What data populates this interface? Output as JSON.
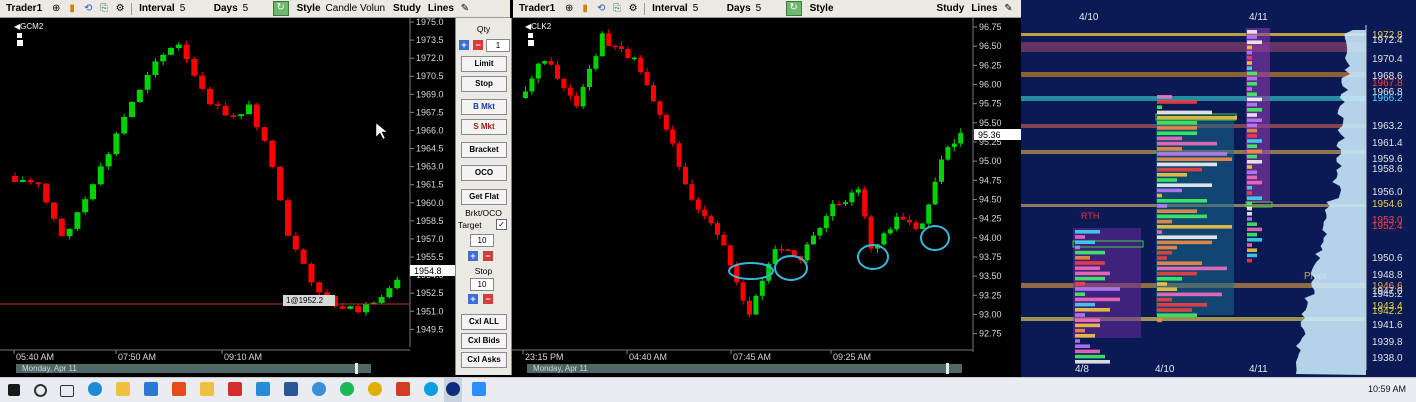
{
  "toolbar_left": {
    "app": "Trader1",
    "interval_label": "Interval",
    "interval_value": "5",
    "days_label": "Days",
    "days_value": "5",
    "style_label": "Style",
    "style_value": "Candle Volun",
    "study_label": "Study",
    "lines_label": "Lines"
  },
  "toolbar_mid": {
    "app": "Trader1",
    "interval_label": "Interval",
    "interval_value": "5",
    "days_label": "Days",
    "days_value": "5",
    "style_label": "Style",
    "study_label": "Study",
    "lines_label": "Lines"
  },
  "chart1": {
    "symbol": "GCM2",
    "price_labels": [
      "1975.0",
      "1973.5",
      "1972.0",
      "1970.5",
      "1969.0",
      "1967.5",
      "1966.0",
      "1964.5",
      "1963.0",
      "1961.5",
      "1960.0",
      "1958.5",
      "1957.0",
      "1955.5",
      "1954.0",
      "1952.5",
      "1951.0",
      "1949.5"
    ],
    "current_price": "1954.8",
    "order_line_label": "1@1952.2",
    "time_labels": [
      "05:40 AM",
      "07:50 AM",
      "09:10 AM"
    ],
    "date_strip": "Monday, Apr 11"
  },
  "order_panel": {
    "qty_label": "Qty",
    "qty_value": "1",
    "limit": "Limit",
    "stop": "Stop",
    "bmkt": "B Mkt",
    "smkt": "S Mkt",
    "bracket": "Bracket",
    "oco": "OCO",
    "getflat": "Get Flat",
    "brkt_oco": "Brkt/OCO",
    "target_label": "Target",
    "target_value": "10",
    "stop_label": "Stop",
    "stop_value": "10",
    "cxl_all": "Cxl ALL",
    "cxl_bids": "Cxl Bids",
    "cxl_asks": "Cxl Asks"
  },
  "chart2": {
    "symbol": "CLK2",
    "price_labels": [
      "96.75",
      "96.50",
      "96.25",
      "96.00",
      "95.75",
      "95.50",
      "95.25",
      "95.00",
      "94.75",
      "94.50",
      "94.25",
      "94.00",
      "93.75",
      "93.50",
      "93.25",
      "93.00",
      "92.75"
    ],
    "current_price": "95.36",
    "time_labels": [
      "23:15 PM",
      "04:40 AM",
      "07:45 AM",
      "09:25 AM"
    ],
    "date_strip": "Monday, Apr 11"
  },
  "profile": {
    "top_dates": [
      "4/10",
      "4/11"
    ],
    "bottom_dates": [
      "4/8",
      "4/10",
      "4/11"
    ],
    "price_labels": [
      "1972.8",
      "1972.4",
      "1970.4",
      "1968.6",
      "1967.8",
      "1966.8",
      "1966.2",
      "1963.2",
      "1961.4",
      "1959.6",
      "1958.6",
      "1956.0",
      "1954.6",
      "1953.0",
      "1952.4",
      "1950.6",
      "1948.8",
      "1947.0",
      "1946.6",
      "1945.2",
      "1943.4",
      "1942.2",
      "1941.6",
      "1939.8",
      "1938.0"
    ],
    "rth_label": "RTH",
    "pivot_label": "Pivot"
  },
  "taskbar": {
    "clock": "10:59 AM"
  },
  "colors": {
    "up": "#00d200",
    "down": "#ff0000",
    "cyan_circle": "#37b8d8"
  }
}
